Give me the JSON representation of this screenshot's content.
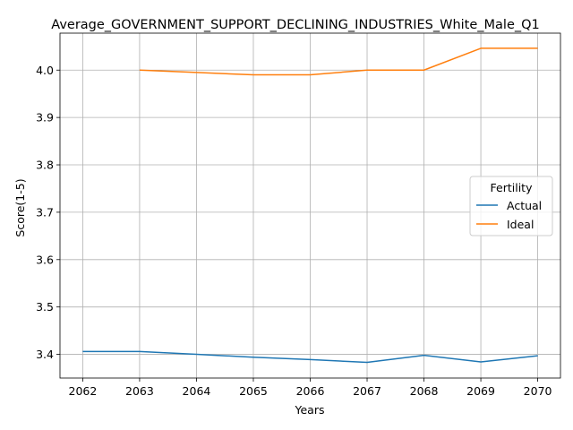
{
  "chart_data": {
    "type": "line",
    "title": "Average_GOVERNMENT_SUPPORT_DECLINING_INDUSTRIES_White_Male_Q1",
    "xlabel": "Years",
    "ylabel": "Score(1-5)",
    "x": [
      2062,
      2063,
      2064,
      2065,
      2066,
      2067,
      2068,
      2069,
      2070
    ],
    "xticks": [
      "2062",
      "2063",
      "2064",
      "2065",
      "2066",
      "2067",
      "2068",
      "2069",
      "2070"
    ],
    "yticks": [
      "3.4",
      "3.5",
      "3.6",
      "3.7",
      "3.8",
      "3.9",
      "4.0"
    ],
    "xlim": [
      2061.6,
      2070.4
    ],
    "ylim": [
      3.35,
      4.078
    ],
    "grid": true,
    "legend": {
      "title": "Fertility",
      "placement": "center-right"
    },
    "series": [
      {
        "name": "Actual",
        "color": "#1f77b4",
        "values": [
          3.406,
          3.406,
          3.4,
          3.394,
          3.389,
          3.383,
          3.398,
          3.384,
          3.397
        ]
      },
      {
        "name": "Ideal",
        "color": "#ff7f0e",
        "values": [
          null,
          4.0,
          3.995,
          3.99,
          3.99,
          4.0,
          4.0,
          4.046,
          4.046
        ]
      }
    ]
  }
}
